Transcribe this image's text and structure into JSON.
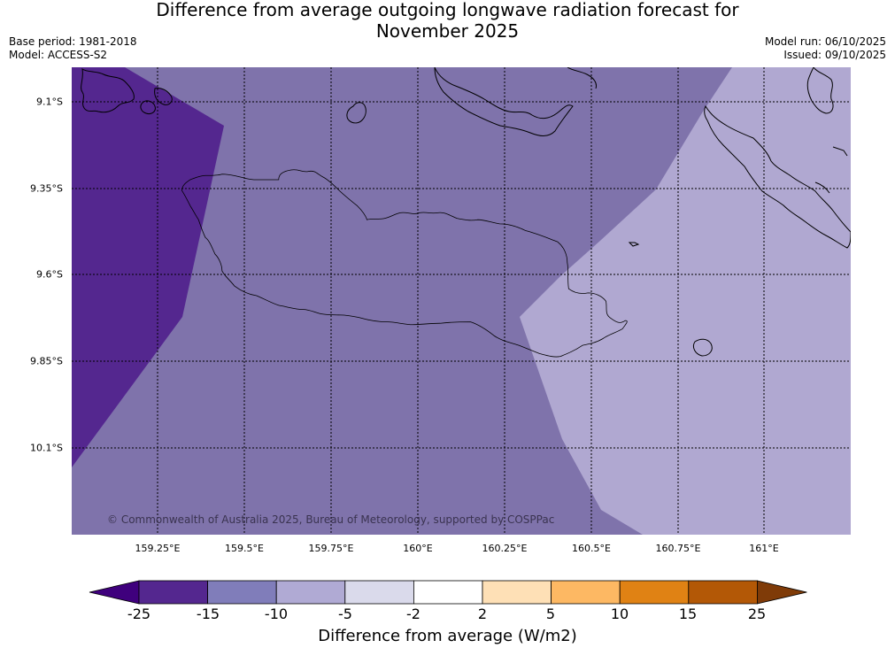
{
  "header": {
    "title_line1": "Difference from average outgoing longwave radiation forecast for",
    "title_line2": "November 2025",
    "base_period": "Base period: 1981-2018",
    "model": "Model: ACCESS-S2",
    "model_run": "Model run: 06/10/2025",
    "issued": "Issued: 09/10/2025"
  },
  "map": {
    "y_ticks": [
      "9.1°S",
      "9.35°S",
      "9.6°S",
      "9.85°S",
      "10.1°S"
    ],
    "x_ticks": [
      "159.25°E",
      "159.5°E",
      "159.75°E",
      "160°E",
      "160.25°E",
      "160.5°E",
      "160.75°E",
      "161°E"
    ],
    "copyright": "© Commonwealth of Australia 2025, Bureau of Meteorology, supported by COSPPac",
    "colors": {
      "dark": "#54278f",
      "mid": "#7f73ab",
      "light": "#b0a8d1"
    }
  },
  "colorbar": {
    "ticks": [
      "-25",
      "-15",
      "-10",
      "-5",
      "-2",
      "2",
      "5",
      "10",
      "15",
      "25"
    ],
    "colors": [
      "#3f007d",
      "#54278f",
      "#807dba",
      "#b0aad4",
      "#dadaeb",
      "#ffffff",
      "#fee0b6",
      "#fdb863",
      "#e08214",
      "#b35806",
      "#7f3b08"
    ],
    "label": "Difference from average (W/m2)"
  }
}
